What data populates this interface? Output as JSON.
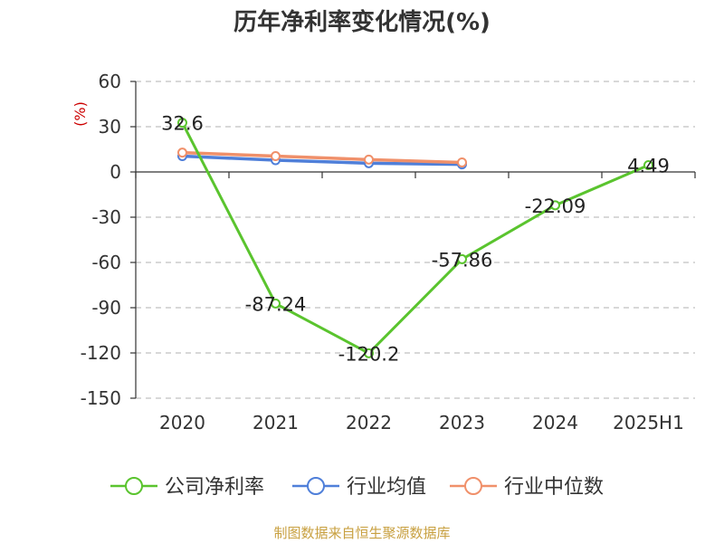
{
  "chart_data": {
    "type": "line",
    "title": "历年净利率变化情况(%)",
    "ylabel": "(%)",
    "ylim": [
      -150,
      60
    ],
    "yticks": [
      60,
      30,
      0,
      -30,
      -60,
      -90,
      -120,
      -150
    ],
    "categories": [
      "2020",
      "2021",
      "2022",
      "2023",
      "2024",
      "2025H1"
    ],
    "grid": true,
    "legend_position": "bottom",
    "series": [
      {
        "name": "公司净利率",
        "color": "#5ac42e",
        "values": [
          32.6,
          -87.24,
          -120.2,
          -57.86,
          -22.09,
          4.49
        ],
        "labels": [
          "32.6",
          "-87.24",
          "-120.2",
          "-57.86",
          "-22.09",
          "4.49"
        ]
      },
      {
        "name": "行业均值",
        "color": "#4f7fd9",
        "values": [
          10.5,
          7.8,
          5.8,
          5.0,
          null,
          null
        ]
      },
      {
        "name": "行业中位数",
        "color": "#f0906a",
        "values": [
          12.8,
          10.5,
          8.2,
          6.3,
          null,
          null
        ]
      }
    ]
  },
  "footer": "制图数据来自恒生聚源数据库"
}
